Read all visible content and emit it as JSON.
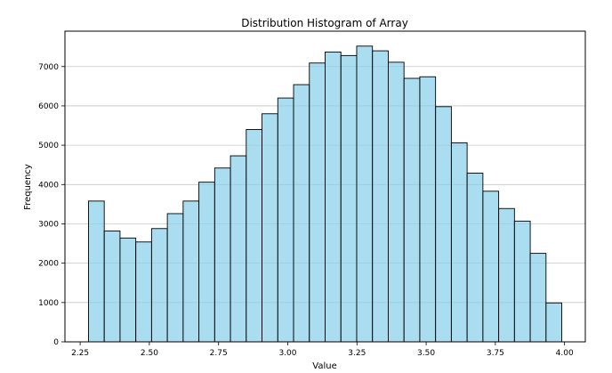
{
  "chart_data": {
    "type": "bar",
    "title": "Distribution Histogram of Array",
    "xlabel": "Value",
    "ylabel": "Frequency",
    "bin_edges": [
      2.28,
      2.337,
      2.394,
      2.451,
      2.508,
      2.565,
      2.622,
      2.679,
      2.736,
      2.793,
      2.85,
      2.907,
      2.964,
      3.021,
      3.078,
      3.135,
      3.192,
      3.249,
      3.306,
      3.363,
      3.42,
      3.477,
      3.534,
      3.591,
      3.648,
      3.705,
      3.762,
      3.819,
      3.876,
      3.933,
      3.99
    ],
    "values": [
      3580,
      2820,
      2640,
      2540,
      2880,
      3260,
      3580,
      4060,
      4420,
      4730,
      5400,
      5800,
      6200,
      6540,
      7090,
      7370,
      7280,
      7520,
      7400,
      7110,
      6700,
      6740,
      5980,
      5060,
      4290,
      3830,
      3390,
      3070,
      2250,
      990
    ],
    "xlim": [
      2.195,
      4.075
    ],
    "ylim": [
      0,
      7900
    ],
    "xticks": [
      2.25,
      2.5,
      2.75,
      3.0,
      3.25,
      3.5,
      3.75,
      4.0
    ],
    "xtick_labels": [
      "2.25",
      "2.50",
      "2.75",
      "3.00",
      "3.25",
      "3.50",
      "3.75",
      "4.00"
    ],
    "yticks": [
      0,
      1000,
      2000,
      3000,
      4000,
      5000,
      6000,
      7000
    ],
    "ytick_labels": [
      "0",
      "1000",
      "2000",
      "3000",
      "4000",
      "5000",
      "6000",
      "7000"
    ],
    "grid": "y-axis",
    "bar_color": "#87CEEB",
    "edge_color": "#000000"
  }
}
